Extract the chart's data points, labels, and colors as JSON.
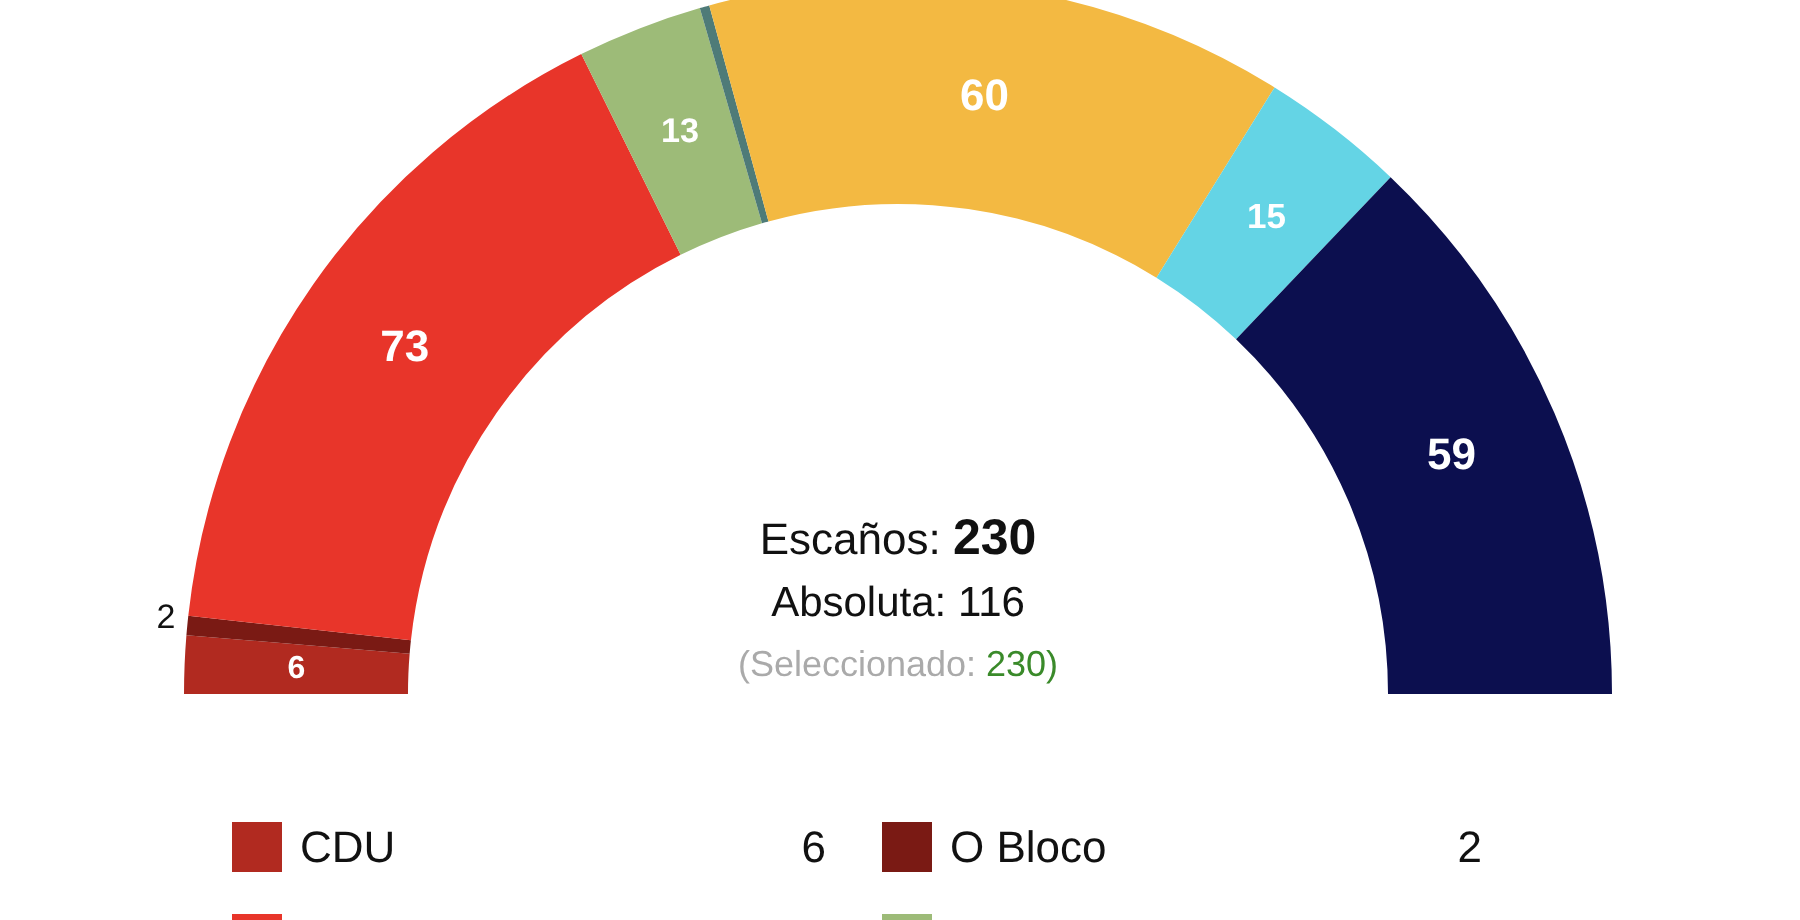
{
  "chart_data": {
    "type": "donut",
    "categories": [
      "CDU",
      "O Bloco",
      null,
      null,
      null,
      null,
      null,
      null
    ],
    "values": [
      6,
      2,
      73,
      13,
      1,
      60,
      15,
      59
    ],
    "colors": [
      "#b12a20",
      "#7a1a14",
      "#e8352a",
      "#9dbb78",
      "#4e7b78",
      "#f3b942",
      "#64d4e5",
      "#0c0f4f"
    ],
    "value_labels": [
      "6",
      "2",
      "73",
      "13",
      null,
      "60",
      "15",
      "59"
    ],
    "annotations": [
      "Escaños: 230",
      "Absoluta: 116",
      "(Seleccionado: 230)",
      "6",
      "2"
    ],
    "legend": "bottom"
  }
}
